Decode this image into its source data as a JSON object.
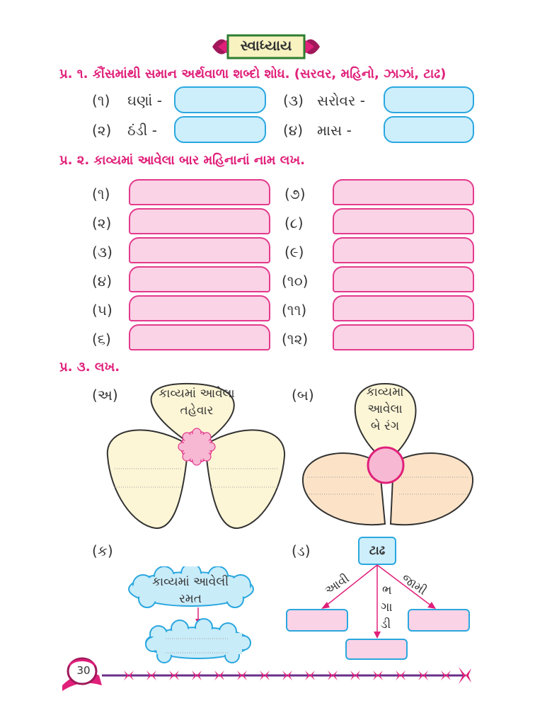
{
  "header": {
    "title": "સ્વાધ્યાય"
  },
  "q1": {
    "title": "પ્ર. ૧. કૌંસમાંથી સમાન અર્થવાળા શબ્દો શોધ. (સરવર, મહિનો, ઝાઝાં, ટાઢ)",
    "items": [
      {
        "num": "(૧)",
        "label": "ઘણાં -"
      },
      {
        "num": "(૨)",
        "label": "ઠંડી -"
      },
      {
        "num": "(૩)",
        "label": "સરોવર -"
      },
      {
        "num": "(૪)",
        "label": "માસ -"
      }
    ]
  },
  "q2": {
    "title": "પ્ર. ૨. કાવ્યમાં આવેલા બાર મહિનાનાં નામ લખ.",
    "left_nums": [
      "(૧)",
      "(૨)",
      "(૩)",
      "(૪)",
      "(૫)",
      "(૬)"
    ],
    "right_nums": [
      "(૭)",
      "(૮)",
      "(૯)",
      "(૧૦)",
      "(૧૧)",
      "(૧૨)"
    ]
  },
  "q3": {
    "title": "પ્ર. ૩. લખ.",
    "a": {
      "label": "(અ)",
      "line1": "કાવ્યમાં આવેલા",
      "line2": "તહેવાર"
    },
    "b": {
      "label": "(બ)",
      "line1": "કાવ્યમાં",
      "line2": "આવેલા",
      "line3": "બે રંગ"
    },
    "c": {
      "label": "(ક)",
      "line1": "કાવ્યમાં આવેલી",
      "line2": "રમત"
    },
    "d": {
      "label": "(ડ)",
      "center": "ટાઢ",
      "left_arrow": "આવી",
      "right_arrow": "જામી",
      "mid1": "ભ",
      "mid2": "ગા",
      "mid3": "ડી"
    }
  },
  "footer": {
    "page_number": "30"
  },
  "colors": {
    "accent_pink": "#e0207a",
    "box_blue": "#cdeefb",
    "box_pink": "#fbd3e6",
    "border_blue": "#2aa7df",
    "petal_cream": "#fdf6d6",
    "petal_peach": "#fce3c8"
  }
}
